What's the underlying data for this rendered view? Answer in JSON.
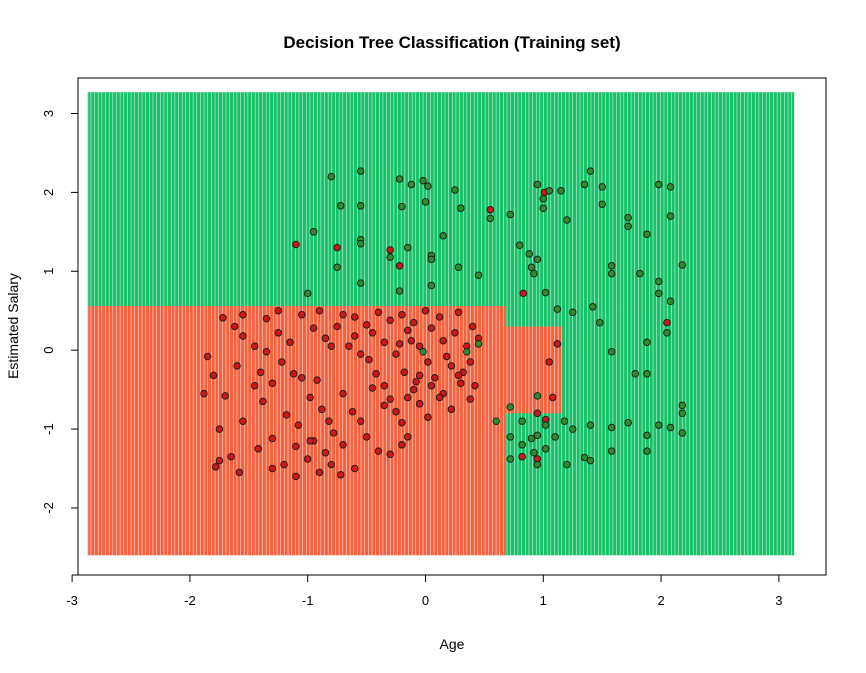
{
  "chart_data": {
    "type": "scatter",
    "title": "Decision Tree Classification (Training set)",
    "xlabel": "Age",
    "ylabel": "Estimated Salary",
    "xlim": [
      -2.95,
      3.4
    ],
    "ylim": [
      -2.85,
      3.45
    ],
    "xticks": [
      "-3",
      "-2",
      "-1",
      "0",
      "1",
      "2",
      "3"
    ],
    "yticks": [
      "-2",
      "-1",
      "0",
      "1",
      "2",
      "3"
    ],
    "grid_extent": {
      "x": [
        -2.87,
        3.13
      ],
      "y": [
        -2.6,
        3.27
      ]
    },
    "regions": [
      {
        "class": "purchased",
        "color": "#18C26A",
        "x": [
          -2.87,
          3.13
        ],
        "y": [
          0.56,
          3.27
        ]
      },
      {
        "class": "not_purchased",
        "color": "#F4623F",
        "x": [
          -2.87,
          0.68
        ],
        "y": [
          -2.6,
          0.56
        ]
      },
      {
        "class": "purchased",
        "color": "#18C26A",
        "x": [
          0.68,
          3.13
        ],
        "y": [
          -2.6,
          0.56
        ]
      },
      {
        "class": "not_purchased",
        "color": "#F4623F",
        "x": [
          0.68,
          1.16
        ],
        "y": [
          -0.8,
          0.3
        ]
      }
    ],
    "point_colors": {
      "not_purchased": "#CC1818",
      "purchased": "#2E8B2E"
    },
    "series": [
      {
        "class": "not_purchased",
        "points": [
          [
            -1.1,
            1.34
          ],
          [
            -0.75,
            1.3
          ],
          [
            -0.3,
            1.27
          ],
          [
            -0.22,
            1.07
          ],
          [
            0.55,
            1.78
          ],
          [
            1.01,
            2.0
          ],
          [
            0.83,
            0.72
          ],
          [
            2.05,
            0.35
          ],
          [
            -1.85,
            -0.08
          ],
          [
            -1.7,
            -0.58
          ],
          [
            -1.75,
            -1.4
          ],
          [
            -1.78,
            -1.48
          ],
          [
            -1.65,
            -1.35
          ],
          [
            -1.58,
            -1.55
          ],
          [
            -1.45,
            -0.45
          ],
          [
            -1.38,
            -0.65
          ],
          [
            -1.3,
            -0.42
          ],
          [
            -1.22,
            -0.15
          ],
          [
            -1.12,
            -0.3
          ],
          [
            -1.05,
            -0.35
          ],
          [
            -0.98,
            -0.6
          ],
          [
            -0.92,
            -0.38
          ],
          [
            -0.88,
            -0.75
          ],
          [
            -0.82,
            -0.9
          ],
          [
            -0.78,
            -1.05
          ],
          [
            -0.7,
            -0.55
          ],
          [
            -0.62,
            -0.78
          ],
          [
            -0.55,
            -0.9
          ],
          [
            -0.48,
            -0.12
          ],
          [
            -0.42,
            -0.3
          ],
          [
            -0.35,
            -0.45
          ],
          [
            -0.3,
            -0.62
          ],
          [
            -0.25,
            -0.78
          ],
          [
            -0.2,
            -0.92
          ],
          [
            -0.15,
            -1.1
          ],
          [
            -0.1,
            -0.5
          ],
          [
            -0.05,
            -0.68
          ],
          [
            0.02,
            -0.85
          ],
          [
            0.08,
            -0.35
          ],
          [
            0.15,
            -0.55
          ],
          [
            0.22,
            -0.2
          ],
          [
            0.3,
            -0.42
          ],
          [
            0.38,
            -0.62
          ],
          [
            -1.72,
            0.41
          ],
          [
            -1.62,
            0.3
          ],
          [
            -1.55,
            0.18
          ],
          [
            -1.45,
            0.05
          ],
          [
            -1.35,
            0.4
          ],
          [
            -1.25,
            0.22
          ],
          [
            -1.15,
            0.1
          ],
          [
            -1.05,
            0.45
          ],
          [
            -0.95,
            0.28
          ],
          [
            -0.85,
            0.15
          ],
          [
            -0.75,
            0.3
          ],
          [
            -0.65,
            0.05
          ],
          [
            -0.55,
            -0.05
          ],
          [
            -0.45,
            0.22
          ],
          [
            -0.35,
            0.1
          ],
          [
            -0.25,
            -0.05
          ],
          [
            -0.15,
            0.25
          ],
          [
            -0.05,
            0.05
          ],
          [
            0.05,
            0.28
          ],
          [
            0.15,
            0.12
          ],
          [
            0.25,
            0.22
          ],
          [
            0.35,
            0.05
          ],
          [
            0.45,
            0.15
          ],
          [
            -1.8,
            -0.32
          ],
          [
            -1.6,
            -0.2
          ],
          [
            -1.4,
            -0.28
          ],
          [
            -1.1,
            -1.22
          ],
          [
            -1.0,
            -1.38
          ],
          [
            -0.9,
            -1.55
          ],
          [
            -0.8,
            -1.45
          ],
          [
            -0.7,
            -1.2
          ],
          [
            -0.6,
            -1.5
          ],
          [
            -0.5,
            -1.1
          ],
          [
            -0.4,
            -1.28
          ],
          [
            -0.3,
            -1.32
          ],
          [
            -0.2,
            -1.2
          ],
          [
            -1.3,
            -1.12
          ],
          [
            -1.2,
            -1.45
          ],
          [
            -1.1,
            -1.6
          ],
          [
            -0.95,
            -1.15
          ],
          [
            -0.85,
            -1.3
          ],
          [
            -0.72,
            -1.58
          ],
          [
            -1.88,
            -0.55
          ],
          [
            -1.75,
            -1.0
          ],
          [
            -1.55,
            -0.9
          ],
          [
            -1.42,
            -1.25
          ],
          [
            -1.3,
            -1.5
          ],
          [
            -1.18,
            -0.82
          ],
          [
            -1.08,
            -0.95
          ],
          [
            -0.98,
            -1.15
          ],
          [
            -0.6,
            0.42
          ],
          [
            -0.5,
            0.32
          ],
          [
            -0.4,
            0.48
          ],
          [
            -0.3,
            0.38
          ],
          [
            -0.2,
            0.45
          ],
          [
            -0.1,
            0.35
          ],
          [
            0.0,
            0.5
          ],
          [
            0.12,
            0.42
          ],
          [
            0.28,
            0.48
          ],
          [
            0.4,
            0.3
          ],
          [
            -0.18,
            -0.28
          ],
          [
            -0.08,
            -0.4
          ],
          [
            0.02,
            -0.15
          ],
          [
            0.12,
            -0.6
          ],
          [
            0.22,
            -0.75
          ],
          [
            0.32,
            -0.28
          ],
          [
            0.42,
            -0.45
          ],
          [
            -1.55,
            0.45
          ],
          [
            -1.35,
            -0.02
          ],
          [
            -1.25,
            0.5
          ],
          [
            -0.9,
            0.5
          ],
          [
            -0.8,
            0.05
          ],
          [
            -0.7,
            0.45
          ],
          [
            -0.6,
            0.18
          ],
          [
            -0.45,
            -0.48
          ],
          [
            -0.35,
            -0.7
          ],
          [
            -0.15,
            -0.6
          ],
          [
            -0.05,
            -0.32
          ],
          [
            0.05,
            -0.45
          ],
          [
            -0.22,
            0.08
          ],
          [
            -0.12,
            0.12
          ],
          [
            0.18,
            -0.08
          ],
          [
            0.28,
            -0.32
          ],
          [
            0.38,
            -0.15
          ],
          [
            0.95,
            -1.38
          ],
          [
            0.82,
            -1.35
          ],
          [
            0.95,
            -0.8
          ],
          [
            1.02,
            -0.88
          ],
          [
            1.08,
            -0.6
          ],
          [
            1.12,
            0.08
          ],
          [
            1.05,
            -0.15
          ]
        ]
      },
      {
        "class": "purchased",
        "points": [
          [
            -0.8,
            2.2
          ],
          [
            -0.55,
            2.27
          ],
          [
            -0.22,
            2.17
          ],
          [
            -0.12,
            2.1
          ],
          [
            -0.02,
            2.15
          ],
          [
            0.02,
            2.08
          ],
          [
            0.25,
            2.03
          ],
          [
            0.95,
            2.1
          ],
          [
            1.05,
            2.02
          ],
          [
            1.15,
            2.02
          ],
          [
            1.35,
            2.1
          ],
          [
            1.4,
            2.27
          ],
          [
            1.5,
            2.07
          ],
          [
            1.98,
            2.1
          ],
          [
            2.08,
            2.07
          ],
          [
            -0.95,
            1.5
          ],
          [
            -0.72,
            1.83
          ],
          [
            -0.55,
            1.83
          ],
          [
            -0.2,
            1.82
          ],
          [
            0.0,
            1.88
          ],
          [
            0.3,
            1.8
          ],
          [
            0.55,
            1.67
          ],
          [
            0.72,
            1.72
          ],
          [
            1.0,
            1.92
          ],
          [
            1.0,
            1.8
          ],
          [
            1.2,
            1.65
          ],
          [
            1.5,
            1.85
          ],
          [
            1.72,
            1.68
          ],
          [
            1.72,
            1.57
          ],
          [
            2.08,
            1.7
          ],
          [
            1.88,
            1.47
          ],
          [
            -0.55,
            1.4
          ],
          [
            -0.55,
            1.35
          ],
          [
            -0.15,
            1.3
          ],
          [
            0.15,
            1.45
          ],
          [
            0.8,
            1.33
          ],
          [
            0.88,
            1.22
          ],
          [
            0.95,
            1.15
          ],
          [
            -0.75,
            1.05
          ],
          [
            -0.3,
            1.18
          ],
          [
            0.05,
            1.2
          ],
          [
            0.05,
            1.15
          ],
          [
            0.28,
            1.05
          ],
          [
            0.45,
            0.95
          ],
          [
            0.9,
            1.05
          ],
          [
            0.92,
            0.97
          ],
          [
            1.58,
            1.07
          ],
          [
            1.58,
            0.97
          ],
          [
            1.82,
            0.97
          ],
          [
            1.98,
            0.87
          ],
          [
            2.18,
            1.08
          ],
          [
            -1.0,
            0.72
          ],
          [
            -0.55,
            0.85
          ],
          [
            -0.22,
            0.75
          ],
          [
            0.05,
            0.82
          ],
          [
            1.02,
            0.73
          ],
          [
            1.12,
            0.52
          ],
          [
            1.25,
            0.48
          ],
          [
            1.42,
            0.55
          ],
          [
            1.48,
            0.35
          ],
          [
            1.98,
            0.72
          ],
          [
            2.08,
            0.62
          ],
          [
            1.58,
            -0.02
          ],
          [
            1.88,
            0.1
          ],
          [
            2.05,
            0.22
          ],
          [
            1.78,
            -0.3
          ],
          [
            1.88,
            -0.3
          ],
          [
            2.18,
            -0.7
          ],
          [
            2.18,
            -0.8
          ],
          [
            2.08,
            -0.98
          ],
          [
            2.18,
            -1.05
          ],
          [
            1.98,
            -0.95
          ],
          [
            1.88,
            -1.08
          ],
          [
            1.88,
            -1.28
          ],
          [
            1.72,
            -0.92
          ],
          [
            1.58,
            -0.98
          ],
          [
            1.58,
            -1.28
          ],
          [
            1.4,
            -0.95
          ],
          [
            1.4,
            -1.4
          ],
          [
            1.35,
            -1.36
          ],
          [
            1.2,
            -1.45
          ],
          [
            1.25,
            -1.0
          ],
          [
            1.18,
            -0.9
          ],
          [
            1.1,
            -1.1
          ],
          [
            1.02,
            -1.25
          ],
          [
            0.95,
            -1.45
          ],
          [
            0.92,
            -1.3
          ],
          [
            0.9,
            -1.12
          ],
          [
            0.82,
            -0.9
          ],
          [
            0.72,
            -0.72
          ],
          [
            0.72,
            -1.1
          ],
          [
            0.72,
            -1.38
          ],
          [
            0.82,
            -1.2
          ],
          [
            0.6,
            -0.9
          ],
          [
            0.95,
            -0.58
          ],
          [
            0.95,
            -1.08
          ],
          [
            1.02,
            -0.95
          ],
          [
            -0.02,
            -0.02
          ],
          [
            0.45,
            0.08
          ],
          [
            0.35,
            -0.02
          ]
        ]
      }
    ]
  }
}
